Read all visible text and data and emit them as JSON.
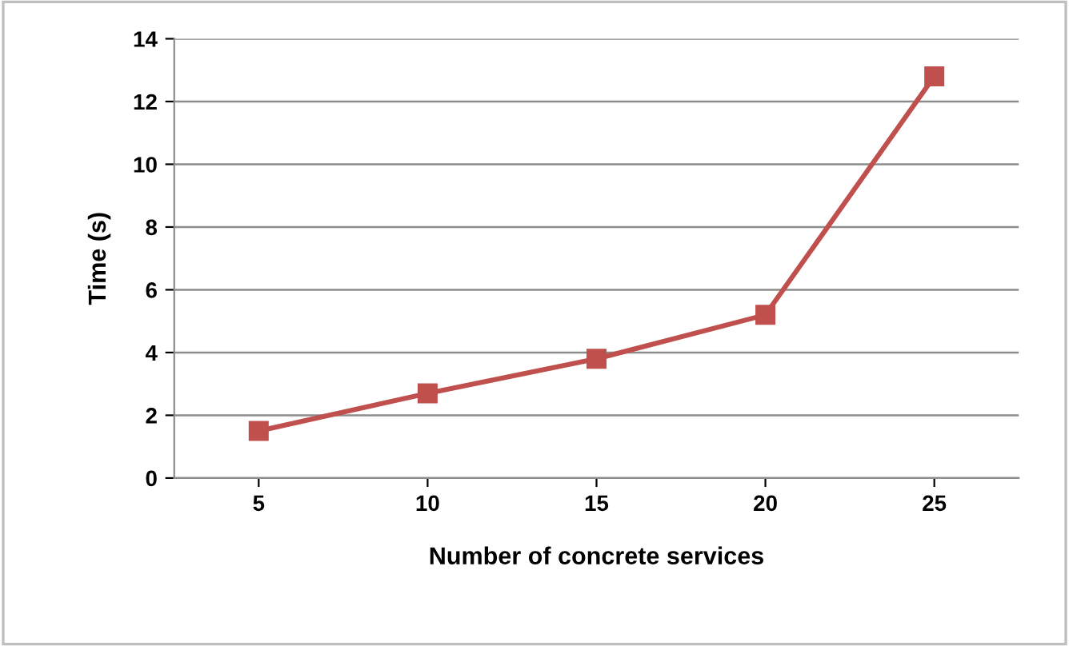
{
  "chart_data": {
    "type": "line",
    "xlabel": "Number of concrete services",
    "ylabel": "Time (s)",
    "categories": [
      "5",
      "10",
      "15",
      "20",
      "25"
    ],
    "series": [
      {
        "color": "#c0504d",
        "values": [
          1.5,
          2.7,
          3.8,
          5.2,
          12.8
        ]
      }
    ],
    "ylim": [
      0,
      14
    ],
    "yticks": [
      0,
      2,
      4,
      6,
      8,
      10,
      12,
      14
    ],
    "grid": "y",
    "marker": "square",
    "line_style": "solid",
    "legend": false
  }
}
